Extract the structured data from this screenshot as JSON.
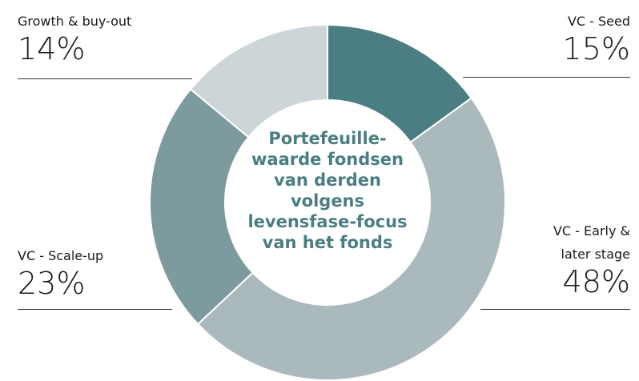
{
  "chart_data": {
    "type": "pie",
    "donut": true,
    "title": "Portefeuille-waarde fondsen van derden volgens levensfase-focus van het fonds",
    "categories": [
      "VC - Seed",
      "VC - Early & later stage",
      "VC - Scale-up",
      "Growth & buy-out"
    ],
    "values": [
      15,
      48,
      23,
      14
    ],
    "value_labels": [
      "15%",
      "48%",
      "23%",
      "14%"
    ],
    "colors": [
      "#4a7e82",
      "#aab9bc",
      "#7d9a9e",
      "#cdd5d8"
    ]
  }
}
